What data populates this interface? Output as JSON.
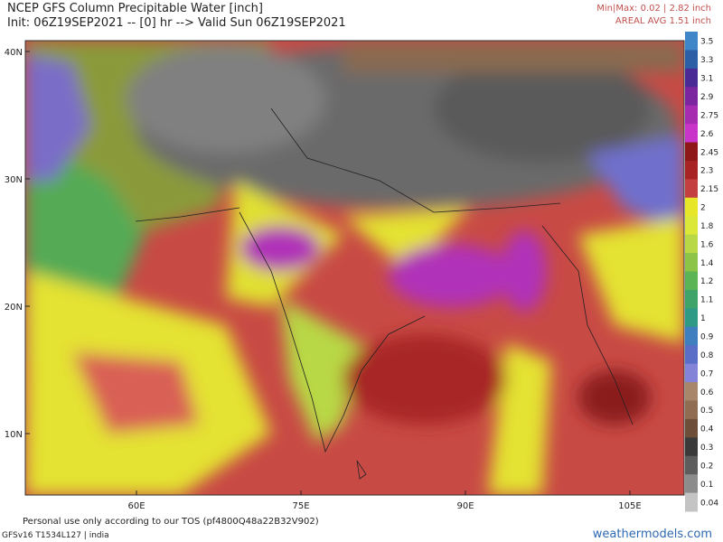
{
  "header": {
    "title": "NCEP GFS Column Precipitable Water [inch]",
    "subtitle": "Init: 06Z19SEP2021 -- [0] hr --> Valid Sun 06Z19SEP2021",
    "minmax": "Min|Max: 0.02 | 2.82 inch",
    "areal_avg": "AREAL AVG 1.51 inch"
  },
  "map": {
    "lat_labels": [
      "40N",
      "30N",
      "20N",
      "10N"
    ],
    "lon_labels": [
      "60E",
      "75E",
      "90E",
      "105E"
    ]
  },
  "colorbar": {
    "labels": [
      "3.5",
      "3.3",
      "3.1",
      "2.9",
      "2.75",
      "2.6",
      "2.45",
      "2.3",
      "2.15",
      "2",
      "1.8",
      "1.6",
      "1.4",
      "1.2",
      "1.1",
      "1",
      "0.9",
      "0.8",
      "0.7",
      "0.6",
      "0.5",
      "0.4",
      "0.3",
      "0.2",
      "0.1",
      "0.04"
    ],
    "colors": [
      "#3f86c8",
      "#2d5fa6",
      "#4a2a94",
      "#7b259f",
      "#a62cb0",
      "#c935c9",
      "#8e1818",
      "#a82424",
      "#c44040",
      "#e8e628",
      "#dbe83a",
      "#b8d845",
      "#8cc448",
      "#5bb455",
      "#3fa46a",
      "#2f9a86",
      "#3f7fc0",
      "#5a6ec8",
      "#8383d8",
      "#a7866a",
      "#8f6c52",
      "#6d4e39",
      "#3a3a3a",
      "#5d5d5d",
      "#8c8c8c",
      "#c4c4c4"
    ]
  },
  "footer": {
    "tos": "Personal use only according to our TOS (pf4800Q48a22B32V902)",
    "model": "GFSv16 T1534L127 | india",
    "site": "weathermodels.com"
  }
}
